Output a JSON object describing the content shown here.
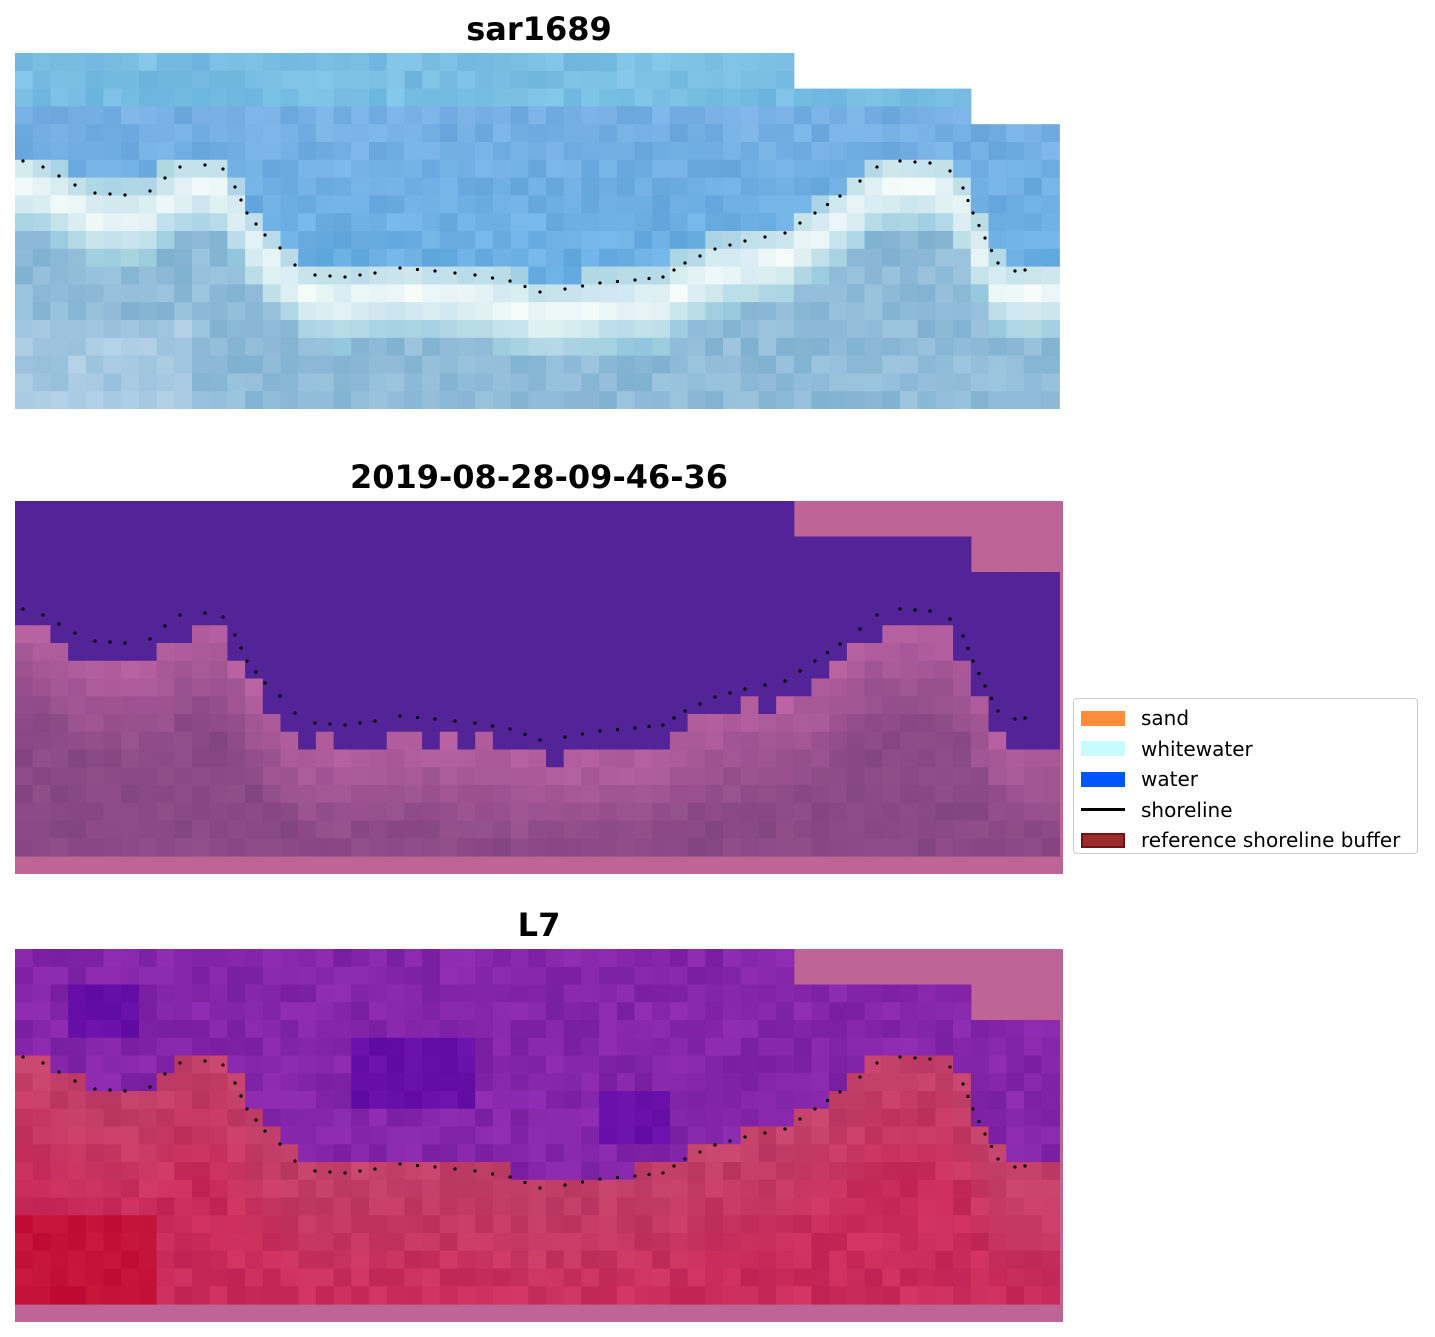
{
  "panels": [
    {
      "title": "sar1689",
      "image_kind": "rgb",
      "base_color": "#8fbbd8"
    },
    {
      "title": "2019-08-28-09-46-36",
      "image_kind": "classification",
      "base_color": "#8a4a85"
    },
    {
      "title": "L7",
      "image_kind": "index",
      "base_color": "#c2406a"
    }
  ],
  "legend": {
    "items": [
      {
        "label": "sand",
        "kind": "patch",
        "color": "#ff8c3a"
      },
      {
        "label": "whitewater",
        "kind": "patch",
        "color": "#c8fcfc"
      },
      {
        "label": "water",
        "kind": "patch",
        "color": "#0055ff"
      },
      {
        "label": "shoreline",
        "kind": "line",
        "color": "#000000"
      },
      {
        "label": "reference shoreline buffer",
        "kind": "patch",
        "color": "#9b2a2a",
        "edge": "#6e1414"
      }
    ]
  },
  "colors": {
    "water_mask": "#532398",
    "buffer": "#bf6595",
    "dots": "#000000"
  }
}
